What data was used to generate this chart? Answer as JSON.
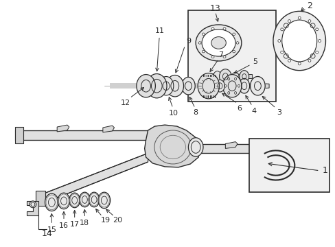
{
  "bg_color": "#ffffff",
  "fig_width": 4.89,
  "fig_height": 3.6,
  "dpi": 100,
  "lc": "#2a2a2a",
  "lc_light": "#888888",
  "housing_fill": "#e0e0e0",
  "tube_fill": "#d8d8d8"
}
